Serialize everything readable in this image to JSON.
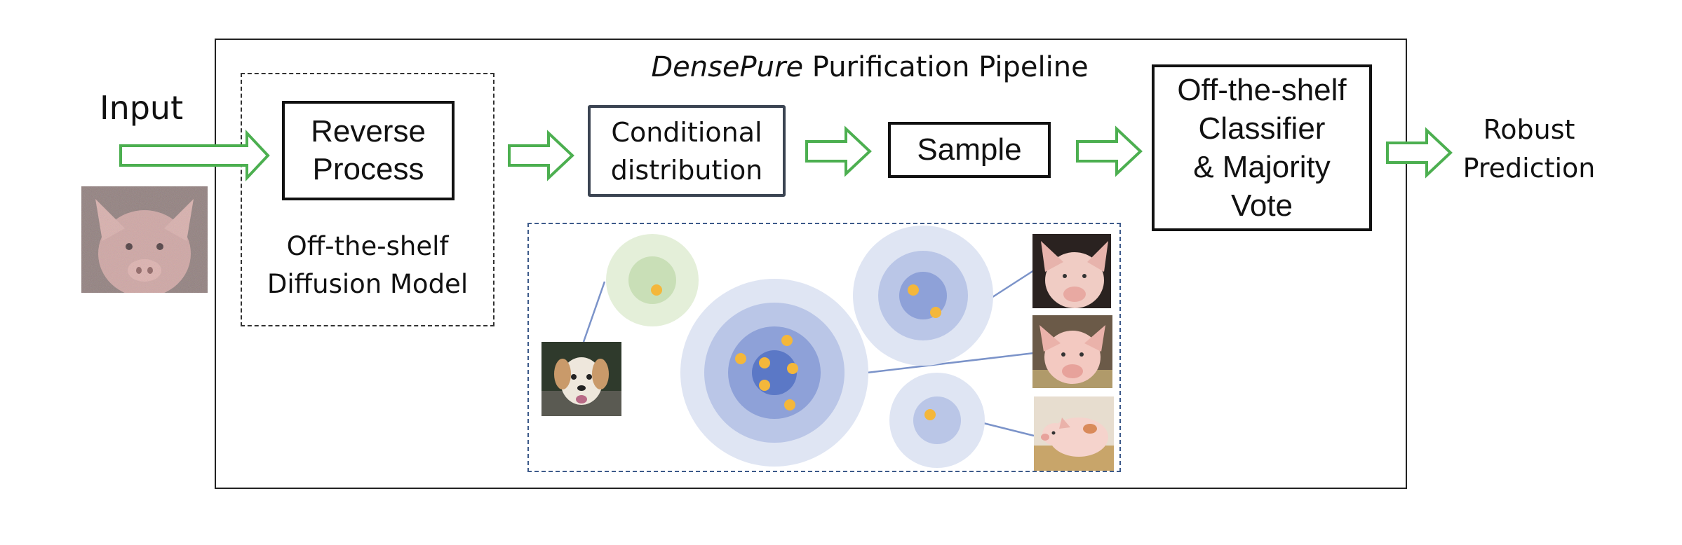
{
  "title": {
    "italic": "DensePure",
    "rest": " Purification Pipeline"
  },
  "input_label": "Input",
  "reverse_process": {
    "line1": "Reverse",
    "line2": "Process"
  },
  "diffusion_caption": {
    "line1": "Off-the-shelf",
    "line2": "Diffusion Model"
  },
  "conditional": {
    "line1": "Conditional",
    "line2": "distribution"
  },
  "sample_label": "Sample",
  "classifier": {
    "line1": "Off-the-shelf",
    "line2": "Classifier",
    "line3": "& Majority",
    "line4": "Vote"
  },
  "robust": {
    "line1": "Robust",
    "line2": "Prediction"
  },
  "images": {
    "input": "noisy pig photo",
    "dog": "dog photo",
    "pig1": "pig photo",
    "pig2": "pig photo",
    "pig3": "piglet photo"
  },
  "colors": {
    "arrow": "#4caf50",
    "green_ring_outer": "#e4efd9",
    "green_ring_inner": "#c9dfb7",
    "blue_ring_1": "#dfe5f3",
    "blue_ring_2": "#bac6e7",
    "blue_ring_3": "#8ea1d8",
    "blue_ring_4": "#5b78c6",
    "dot": "#f4b73b",
    "connector": "#7b93c9"
  }
}
